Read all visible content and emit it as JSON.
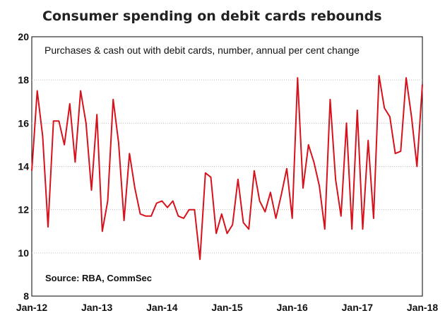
{
  "chart_data": {
    "type": "line",
    "title": "Consumer spending on debit cards rebounds",
    "subtitle": "Purchases & cash out with debit cards, number, annual per cent change",
    "source": "Source: RBA, CommSec",
    "xlabel": "",
    "ylabel": "",
    "ylim": [
      8,
      20
    ],
    "yticks": [
      8,
      10,
      12,
      14,
      16,
      18,
      20
    ],
    "xtick_labels": [
      "Jan-12",
      "Jan-13",
      "Jan-14",
      "Jan-15",
      "Jan-16",
      "Jan-17",
      "Jan-18"
    ],
    "grid": true,
    "line_color": "#d6121c",
    "x": [
      "Jan-12",
      "Feb-12",
      "Mar-12",
      "Apr-12",
      "May-12",
      "Jun-12",
      "Jul-12",
      "Aug-12",
      "Sep-12",
      "Oct-12",
      "Nov-12",
      "Dec-12",
      "Jan-13",
      "Feb-13",
      "Mar-13",
      "Apr-13",
      "May-13",
      "Jun-13",
      "Jul-13",
      "Aug-13",
      "Sep-13",
      "Oct-13",
      "Nov-13",
      "Dec-13",
      "Jan-14",
      "Feb-14",
      "Mar-14",
      "Apr-14",
      "May-14",
      "Jun-14",
      "Jul-14",
      "Aug-14",
      "Sep-14",
      "Oct-14",
      "Nov-14",
      "Dec-14",
      "Jan-15",
      "Feb-15",
      "Mar-15",
      "Apr-15",
      "May-15",
      "Jun-15",
      "Jul-15",
      "Aug-15",
      "Sep-15",
      "Oct-15",
      "Nov-15",
      "Dec-15",
      "Jan-16",
      "Feb-16",
      "Mar-16",
      "Apr-16",
      "May-16",
      "Jun-16",
      "Jul-16",
      "Aug-16",
      "Sep-16",
      "Oct-16",
      "Nov-16",
      "Dec-16",
      "Jan-17",
      "Feb-17",
      "Mar-17",
      "Apr-17",
      "May-17",
      "Jun-17",
      "Jul-17",
      "Aug-17",
      "Sep-17",
      "Oct-17",
      "Nov-17",
      "Dec-17",
      "Jan-18"
    ],
    "values": [
      13.8,
      17.5,
      15.4,
      11.2,
      16.1,
      16.1,
      15.0,
      16.9,
      14.2,
      17.5,
      16.0,
      12.9,
      16.4,
      11.0,
      12.4,
      17.1,
      15.1,
      11.5,
      14.6,
      13.0,
      11.8,
      11.7,
      11.7,
      12.3,
      12.4,
      12.1,
      12.4,
      11.7,
      11.6,
      12.0,
      12.0,
      9.7,
      13.7,
      13.5,
      10.9,
      11.8,
      10.9,
      11.3,
      13.4,
      11.4,
      11.1,
      13.8,
      12.4,
      11.9,
      12.8,
      11.6,
      12.7,
      13.9,
      11.6,
      18.1,
      13.0,
      15.0,
      14.2,
      13.1,
      11.1,
      17.1,
      13.4,
      11.7,
      16.0,
      11.1,
      16.6,
      11.1,
      15.2,
      11.6,
      18.2,
      16.7,
      16.3,
      14.6,
      14.7,
      18.1,
      16.3,
      14.0,
      17.8
    ]
  }
}
